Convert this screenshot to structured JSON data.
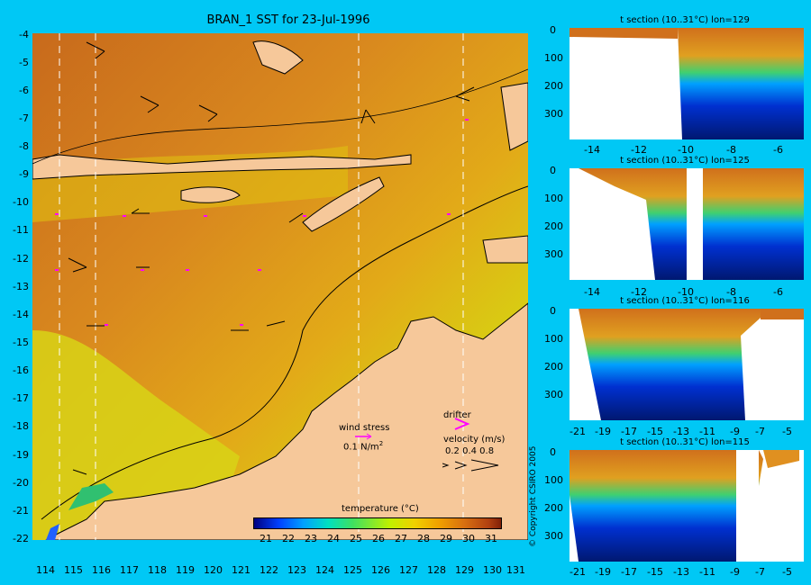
{
  "title": "BRAN_1 SST for 23-Jul-1996",
  "map": {
    "y_ticks": [
      "-4",
      "-5",
      "-6",
      "-7",
      "-8",
      "-9",
      "-10",
      "-11",
      "-12",
      "-13",
      "-14",
      "-15",
      "-16",
      "-17",
      "-18",
      "-19",
      "-20",
      "-21",
      "-22"
    ],
    "x_ticks": [
      "114",
      "115",
      "116",
      "117",
      "118",
      "119",
      "120",
      "121",
      "122",
      "123",
      "124",
      "125",
      "126",
      "127",
      "128",
      "129",
      "130",
      "131"
    ],
    "wind_stress_label": "wind stress",
    "wind_stress_value": "0.1 N/m",
    "wind_stress_exp": "2",
    "drifter_label": "drifter",
    "velocity_label": "velocity (m/s)",
    "velocity_values": "0.2 0.4 0.8",
    "colorbar_title": "temperature (°C)",
    "colorbar_ticks": [
      "21",
      "22",
      "23",
      "24",
      "25",
      "26",
      "27",
      "28",
      "29",
      "30",
      "31"
    ]
  },
  "panels": [
    {
      "title": "t section (10..31°C) lon=129",
      "x_ticks": [
        "-14",
        "-12",
        "-10",
        "-8",
        "-6"
      ],
      "y_ticks": [
        "0",
        "100",
        "200",
        "300"
      ]
    },
    {
      "title": "t section (10..31°C) lon=125",
      "x_ticks": [
        "-14",
        "-12",
        "-10",
        "-8",
        "-6"
      ],
      "y_ticks": [
        "0",
        "100",
        "200",
        "300"
      ]
    },
    {
      "title": "t section (10..31°C) lon=116",
      "x_ticks": [
        "-21",
        "-19",
        "-17",
        "-15",
        "-13",
        "-11",
        "-9",
        "-7",
        "-5"
      ],
      "y_ticks": [
        "0",
        "100",
        "200",
        "300"
      ]
    },
    {
      "title": "t section (10..31°C) lon=115",
      "x_ticks": [
        "-21",
        "-19",
        "-17",
        "-15",
        "-13",
        "-11",
        "-9",
        "-7",
        "-5"
      ],
      "y_ticks": [
        "0",
        "100",
        "200",
        "300"
      ]
    }
  ],
  "copyright": "© Copyright CSIRO 2005",
  "colors": {
    "background": "#00c8f5",
    "land": "#f6c89a",
    "warm": "#c8641e",
    "cool": "#002080",
    "mid": "#40d080"
  }
}
